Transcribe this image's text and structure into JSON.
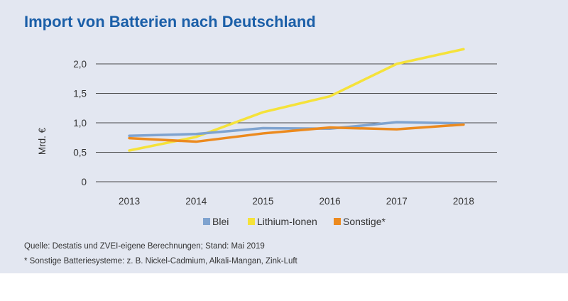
{
  "chart_data": {
    "type": "line",
    "title": "Import von Batterien nach Deutschland",
    "xlabel": "",
    "ylabel": "Mrd. €",
    "categories": [
      "2013",
      "2014",
      "2015",
      "2016",
      "2017",
      "2018"
    ],
    "ylim": [
      0,
      2.0
    ],
    "yticks": [
      0,
      0.5,
      1.0,
      1.5,
      2.0
    ],
    "ytick_labels": [
      "0",
      "0,5",
      "1,0",
      "1,5",
      "2,0"
    ],
    "grid": true,
    "legend_position": "bottom",
    "series": [
      {
        "name": "Blei",
        "color": "#7fa3cf",
        "values": [
          0.78,
          0.81,
          0.91,
          0.9,
          1.01,
          0.99
        ]
      },
      {
        "name": "Lithium-Ionen",
        "color": "#f5e23a",
        "values": [
          0.53,
          0.76,
          1.18,
          1.45,
          2.0,
          2.25
        ]
      },
      {
        "name": "Sonstige*",
        "color": "#ec8a1e",
        "values": [
          0.74,
          0.68,
          0.82,
          0.92,
          0.89,
          0.97
        ]
      }
    ]
  },
  "notes": {
    "source": "Quelle: Destatis und ZVEI-eigene Berechnungen; Stand: Mai 2019",
    "footnote": "* Sonstige Batteriesysteme: z. B. Nickel-Cadmium, Alkali-Mangan, Zink-Luft"
  }
}
